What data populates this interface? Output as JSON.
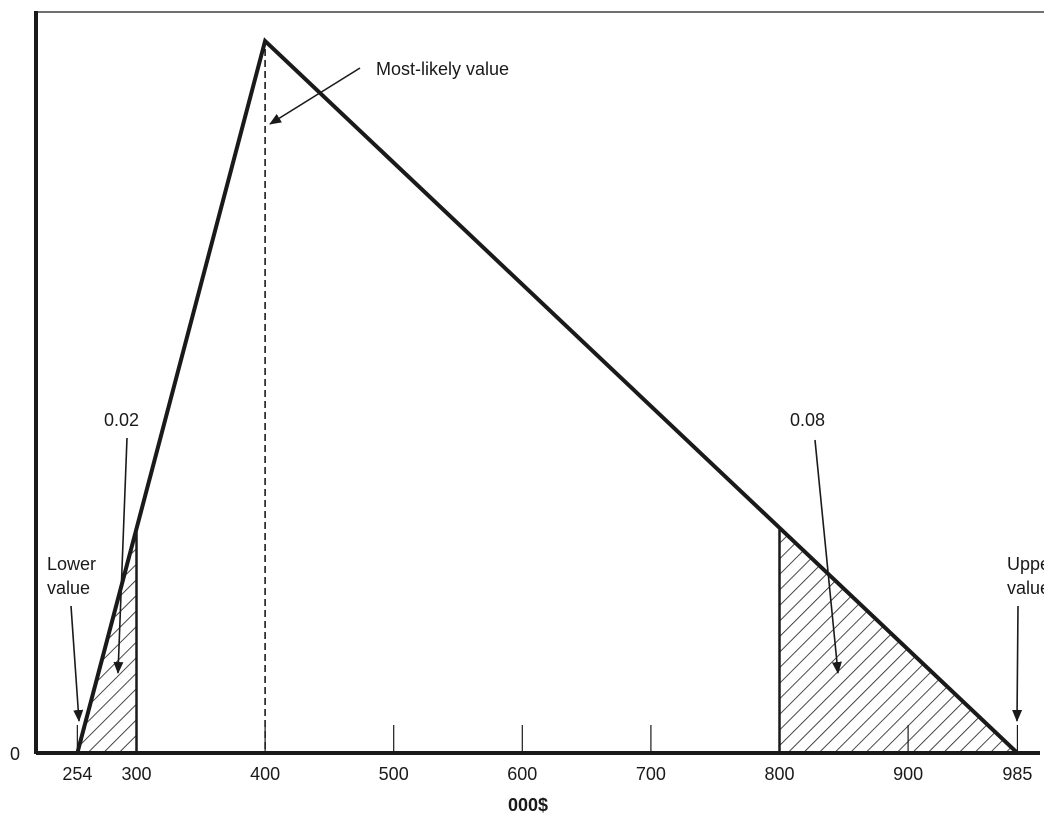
{
  "chart_data": {
    "type": "area",
    "distribution": "triangular",
    "lower_value": 254,
    "most_likely_value": 400,
    "upper_value": 985,
    "x_ticks": [
      254,
      300,
      400,
      500,
      600,
      700,
      800,
      900,
      985
    ],
    "tick_labels": [
      "254",
      "300",
      "400",
      "500",
      "600",
      "700",
      "800",
      "900",
      "985"
    ],
    "xlabel": "000$",
    "y_tick_labels": [
      "0"
    ],
    "shaded_regions": [
      {
        "from": 254,
        "to": 300,
        "probability": "0.02"
      },
      {
        "from": 800,
        "to": 985,
        "probability": "0.08"
      }
    ],
    "annotations": {
      "most_likely": "Most-likely value",
      "lower_line1": "Lower",
      "lower_line2": "value",
      "upper_line1": "Upper",
      "upper_line2": "value",
      "left_prob": "0.02",
      "right_prob": "0.08"
    },
    "grid": false
  }
}
